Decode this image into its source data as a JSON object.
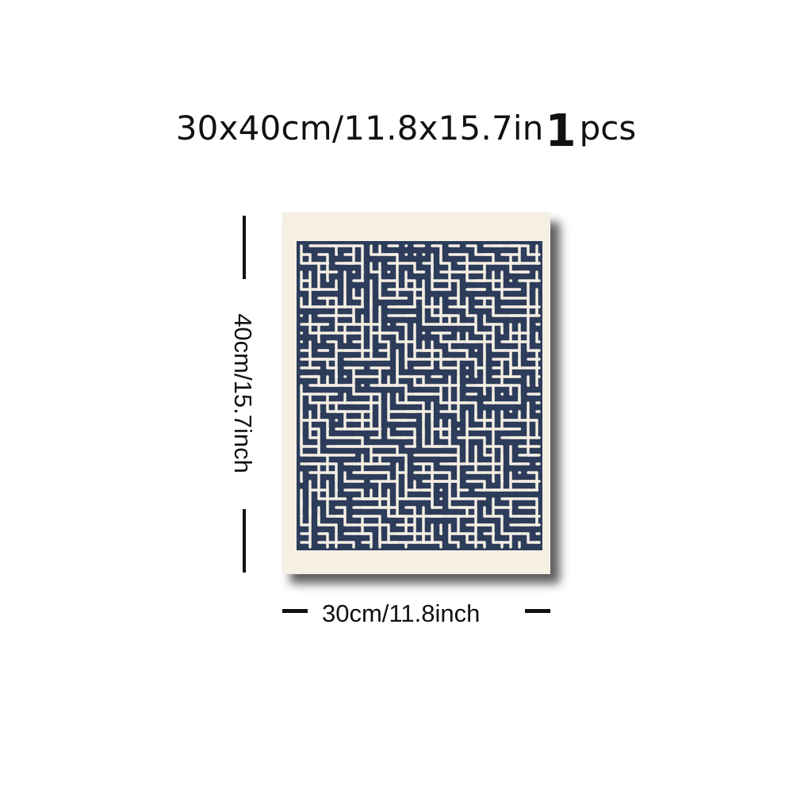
{
  "headline": {
    "size_text": "30x40cm/11.8x15.7in",
    "quantity_number": "1",
    "quantity_unit": "pcs"
  },
  "dimensions": {
    "height_label": "40cm/15.7inch",
    "width_label": "30cm/11.8inch"
  },
  "poster": {
    "pattern_color": "#2c3c5a",
    "paper_color": "#f5efe4"
  }
}
